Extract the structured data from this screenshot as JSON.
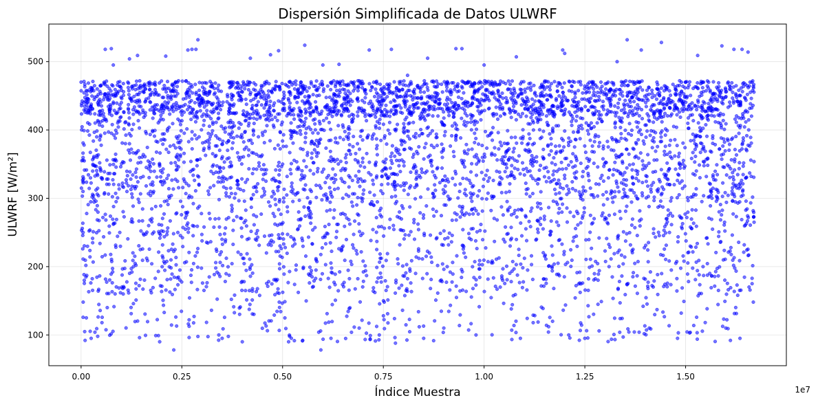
{
  "chart_data": {
    "type": "scatter",
    "title": "Dispersión Simplificada de Datos ULWRF",
    "xlabel": "Índice Muestra",
    "ylabel": "ULWRF [W/m²]",
    "x_offset_label": "1e7",
    "xlim": [
      -800000,
      17500000
    ],
    "ylim": [
      55,
      555
    ],
    "x_ticks": [
      0,
      2500000,
      5000000,
      7500000,
      10000000,
      12500000,
      15000000
    ],
    "x_tick_labels": [
      "0.00",
      "0.25",
      "0.50",
      "0.75",
      "1.00",
      "1.25",
      "1.50"
    ],
    "y_ticks": [
      100,
      200,
      300,
      400,
      500
    ],
    "y_tick_labels": [
      "100",
      "200",
      "300",
      "400",
      "500"
    ],
    "grid": true,
    "marker_color": "#0000ff",
    "marker_alpha": 0.55,
    "x_range_of_data": [
      0,
      16700000
    ],
    "series": [
      {
        "values_note_x": "x sample index (data units)",
        "points": [
          [
            0,
            470
          ],
          [
            20000,
            355
          ],
          [
            50000,
            250
          ],
          [
            80000,
            180
          ],
          [
            100000,
            92
          ],
          [
            130000,
            125
          ],
          [
            150000,
            440
          ],
          [
            250000,
            95
          ],
          [
            400000,
            460
          ],
          [
            500000,
            330
          ],
          [
            600000,
            518
          ],
          [
            650000,
            140
          ],
          [
            750000,
            519
          ],
          [
            800000,
            495
          ],
          [
            1000000,
            440
          ],
          [
            1100000,
            380
          ],
          [
            1200000,
            504
          ],
          [
            1300000,
            200
          ],
          [
            1400000,
            509
          ],
          [
            1450000,
            96
          ],
          [
            1600000,
            460
          ],
          [
            1800000,
            310
          ],
          [
            1950000,
            90
          ],
          [
            2100000,
            508
          ],
          [
            2300000,
            78
          ],
          [
            2400000,
            250
          ],
          [
            2650000,
            517
          ],
          [
            2750000,
            518
          ],
          [
            2850000,
            518
          ],
          [
            2900000,
            532
          ],
          [
            3000000,
            420
          ],
          [
            3200000,
            270
          ],
          [
            3500000,
            95
          ],
          [
            3700000,
            470
          ],
          [
            3900000,
            320
          ],
          [
            4000000,
            90
          ],
          [
            4200000,
            505
          ],
          [
            4400000,
            390
          ],
          [
            4600000,
            220
          ],
          [
            4700000,
            510
          ],
          [
            4800000,
            460
          ],
          [
            4900000,
            516
          ],
          [
            5000000,
            350
          ],
          [
            5150000,
            90
          ],
          [
            5300000,
            460
          ],
          [
            5400000,
            280
          ],
          [
            5500000,
            92
          ],
          [
            5550000,
            524
          ],
          [
            5700000,
            190
          ],
          [
            5850000,
            450
          ],
          [
            5950000,
            78
          ],
          [
            6000000,
            495
          ],
          [
            6100000,
            330
          ],
          [
            6200000,
            95
          ],
          [
            6400000,
            496
          ],
          [
            6500000,
            230
          ],
          [
            6700000,
            470
          ],
          [
            6900000,
            110
          ],
          [
            7050000,
            420
          ],
          [
            7150000,
            517
          ],
          [
            7300000,
            350
          ],
          [
            7400000,
            100
          ],
          [
            7600000,
            460
          ],
          [
            7700000,
            518
          ],
          [
            7800000,
            88
          ],
          [
            7900000,
            280
          ],
          [
            8100000,
            480
          ],
          [
            8300000,
            190
          ],
          [
            8500000,
            95
          ],
          [
            8600000,
            505
          ],
          [
            8800000,
            330
          ],
          [
            9000000,
            110
          ],
          [
            9200000,
            440
          ],
          [
            9300000,
            519
          ],
          [
            9450000,
            519
          ],
          [
            9500000,
            220
          ],
          [
            9650000,
            470
          ],
          [
            9800000,
            100
          ],
          [
            10000000,
            495
          ],
          [
            10200000,
            300
          ],
          [
            10400000,
            170
          ],
          [
            10600000,
            460
          ],
          [
            10800000,
            507
          ],
          [
            10900000,
            95
          ],
          [
            11100000,
            380
          ],
          [
            11300000,
            240
          ],
          [
            11500000,
            470
          ],
          [
            11700000,
            120
          ],
          [
            11950000,
            517
          ],
          [
            12000000,
            512
          ],
          [
            12100000,
            100
          ],
          [
            12300000,
            440
          ],
          [
            12500000,
            95
          ],
          [
            12700000,
            305
          ],
          [
            12900000,
            470
          ],
          [
            13100000,
            200
          ],
          [
            13300000,
            500
          ],
          [
            13450000,
            97
          ],
          [
            13550000,
            532
          ],
          [
            13700000,
            350
          ],
          [
            13900000,
            517
          ],
          [
            14100000,
            110
          ],
          [
            14300000,
            460
          ],
          [
            14400000,
            528
          ],
          [
            14600000,
            250
          ],
          [
            14800000,
            95
          ],
          [
            15000000,
            470
          ],
          [
            15100000,
            103
          ],
          [
            15300000,
            509
          ],
          [
            15400000,
            380
          ],
          [
            15600000,
            190
          ],
          [
            15800000,
            460
          ],
          [
            15900000,
            523
          ],
          [
            16000000,
            110
          ],
          [
            16200000,
            518
          ],
          [
            16350000,
            95
          ],
          [
            16400000,
            518
          ],
          [
            16500000,
            330
          ],
          [
            16550000,
            514
          ],
          [
            16600000,
            470
          ],
          [
            16650000,
            175
          ],
          [
            16700000,
            265
          ]
        ]
      }
    ]
  }
}
